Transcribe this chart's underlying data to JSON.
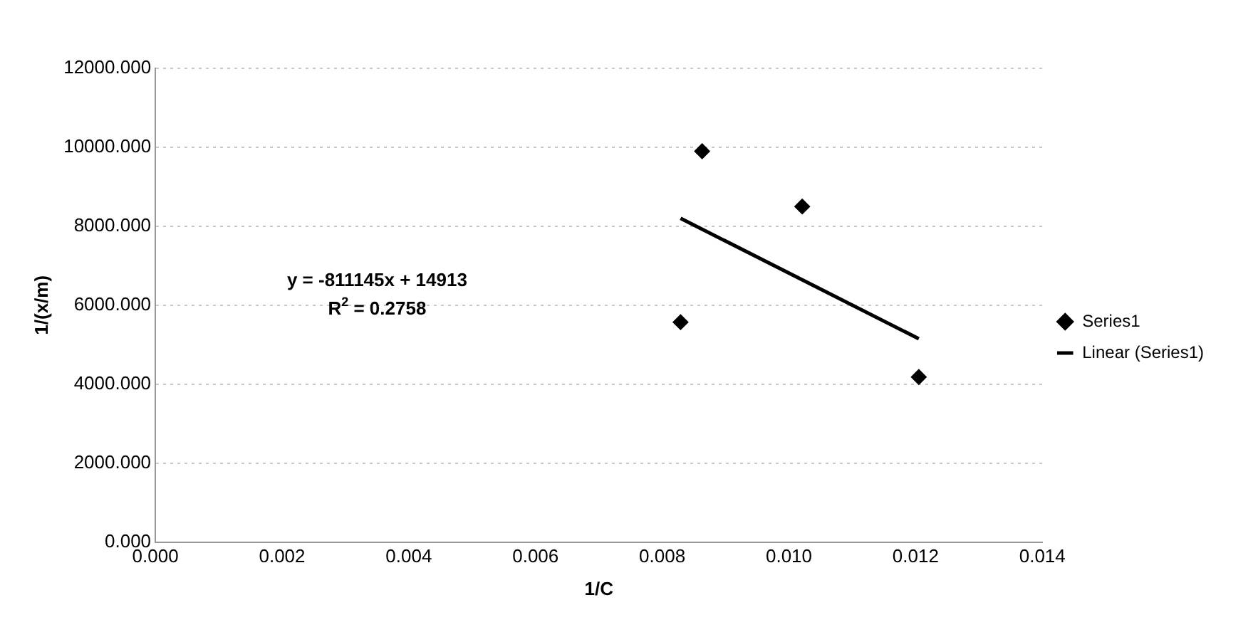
{
  "chart_data": {
    "type": "scatter",
    "xlabel": "1/C",
    "ylabel": "1/(x/m)",
    "xlim": [
      0,
      0.014
    ],
    "xticks": [
      {
        "value": 0,
        "label": "0.000"
      },
      {
        "value": 0.002,
        "label": "0.002"
      },
      {
        "value": 0.004,
        "label": "0.004"
      },
      {
        "value": 0.006,
        "label": "0.006"
      },
      {
        "value": 0.008,
        "label": "0.008"
      },
      {
        "value": 0.01,
        "label": "0.010"
      },
      {
        "value": 0.012,
        "label": "0.012"
      },
      {
        "value": 0.014,
        "label": "0.014"
      }
    ],
    "ylim": [
      0,
      12000
    ],
    "yticks": [
      {
        "value": 0,
        "label": "0.000"
      },
      {
        "value": 2000,
        "label": "2000.000"
      },
      {
        "value": 4000,
        "label": "4000.000"
      },
      {
        "value": 6000,
        "label": "6000.000"
      },
      {
        "value": 8000,
        "label": "8000.000"
      },
      {
        "value": 10000,
        "label": "10000.000"
      },
      {
        "value": 12000,
        "label": "12000.000"
      }
    ],
    "grid": "y",
    "legend": "right",
    "series": [
      {
        "name": "Series1",
        "color": "#000000",
        "marker": "diamond",
        "x": [
          0.00829,
          0.00863,
          0.01021,
          0.01205
        ],
        "values": [
          5570,
          9900,
          8500,
          4180
        ]
      },
      {
        "name": "Linear (Series1)",
        "type": "line",
        "color": "#000000",
        "marker": "none",
        "line_style": "solid",
        "x": [
          0.00829,
          0.01205
        ],
        "values": [
          8200,
          5150
        ]
      }
    ],
    "annotations": [
      "y = -811145x + 14913",
      "R$^{2}$ = 0.2758"
    ]
  }
}
